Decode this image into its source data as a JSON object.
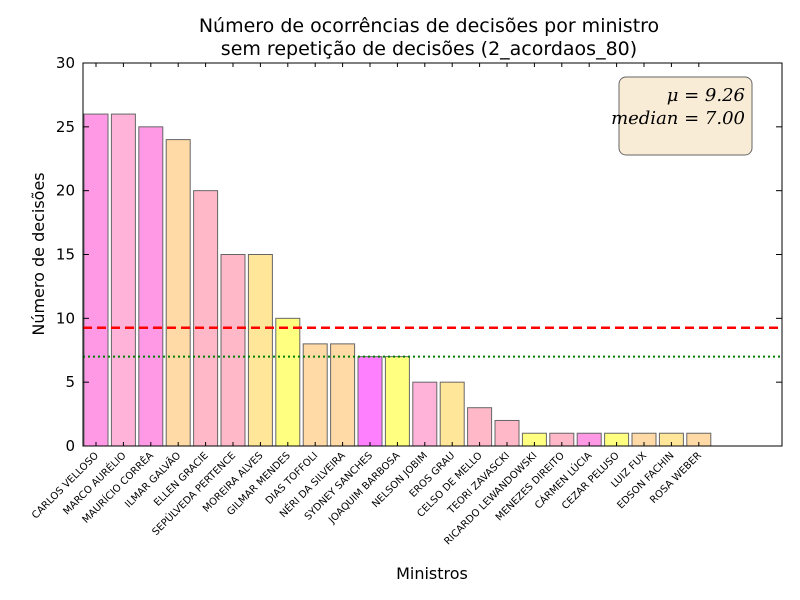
{
  "chart_data": {
    "type": "bar",
    "title": "Número de ocorrências de decisões por ministro",
    "subtitle": "sem repetição de decisões (2_acordaos_80)",
    "xlabel": "Ministros",
    "ylabel": "Número de decisões",
    "ylim": [
      0,
      30
    ],
    "yticks": [
      "0",
      "5",
      "10",
      "15",
      "20",
      "25",
      "30"
    ],
    "grid": false,
    "categories": [
      "CARLOS VELLOSO",
      "MARCO AURÉLIO",
      "MAURÍCIO CORRÊA",
      "ILMAR GALVÃO",
      "ELLEN GRACIE",
      "SEPÚLVEDA PERTENCE",
      "MOREIRA ALVES",
      "GILMAR MENDES",
      "DIAS TOFFOLI",
      "NÉRI DA SILVEIRA",
      "SYDNEY SANCHES",
      "JOAQUIM BARBOSA",
      "NELSON JOBIM",
      "EROS GRAU",
      "CELSO DE MELLO",
      "TEORI ZAVASCKI",
      "RICARDO LEWANDOWSKI",
      "MENEZES DIREITO",
      "CÁRMEN LÚCIA",
      "CEZAR PELUSO",
      "LUIZ FUX",
      "EDSON FACHIN",
      "ROSA WEBER"
    ],
    "values": [
      26,
      26,
      25,
      24,
      20,
      15,
      15,
      10,
      8,
      8,
      7,
      7,
      5,
      5,
      3,
      2,
      1,
      1,
      1,
      1,
      1,
      1,
      1
    ],
    "bar_colors": [
      "#ff99e6",
      "#ffb3d9",
      "#ff99e6",
      "#ffd9a6",
      "#ffb8c8",
      "#ffb8c8",
      "#ffe699",
      "#ffff80",
      "#ffd9a6",
      "#ffd9a6",
      "#ff80ff",
      "#ffff80",
      "#ffb3d9",
      "#ffe699",
      "#ffb8c8",
      "#ffb8c8",
      "#ffff80",
      "#ffb8c8",
      "#ff99e6",
      "#ffff80",
      "#ffd9a6",
      "#ffe699",
      "#ffd9a6"
    ],
    "mean": 9.26,
    "median": 7.0,
    "mean_line_color": "#ff0000",
    "median_line_color": "#008000",
    "stats_box": {
      "mean_text": "μ = 9.26",
      "median_text": "median = 7.00",
      "placement": "top-right",
      "facecolor": "#f9ecd6"
    }
  }
}
